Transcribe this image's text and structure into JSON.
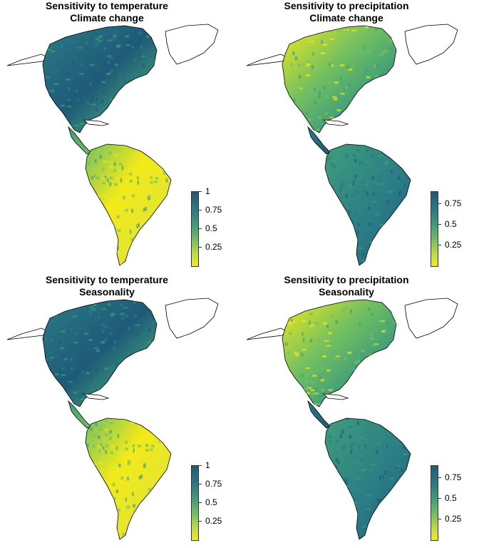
{
  "panels": [
    {
      "title_line1": "Sensitivity to temperature",
      "title_line2": "Climate change",
      "variable": "temperature",
      "legend_ticks": [
        "1",
        "0.75",
        "0.5",
        "0.25"
      ],
      "legend_range": [
        0,
        1
      ]
    },
    {
      "title_line1": "Sensitivity to precipitation",
      "title_line2": "Climate change",
      "variable": "precipitation",
      "legend_ticks": [
        "0.75",
        "0.5",
        "0.25"
      ],
      "legend_range": [
        0,
        0.9
      ]
    },
    {
      "title_line1": "Sensitivity to temperature",
      "title_line2": "Seasonality",
      "variable": "temperature",
      "legend_ticks": [
        "1",
        "0.75",
        "0.5",
        "0.25"
      ],
      "legend_range": [
        0,
        1
      ]
    },
    {
      "title_line1": "Sensitivity to precipitation",
      "title_line2": "Seasonality",
      "variable": "precipitation",
      "legend_ticks": [
        "0.75",
        "0.5",
        "0.25"
      ],
      "legend_range": [
        0,
        0.9
      ]
    }
  ],
  "colors": {
    "high": "#1f5a78",
    "mid_high": "#2a7b86",
    "mid": "#3e9d7a",
    "mid_low": "#74c060",
    "low": "#f2ea1a",
    "outline": "#000000",
    "background": "#ffffff"
  }
}
